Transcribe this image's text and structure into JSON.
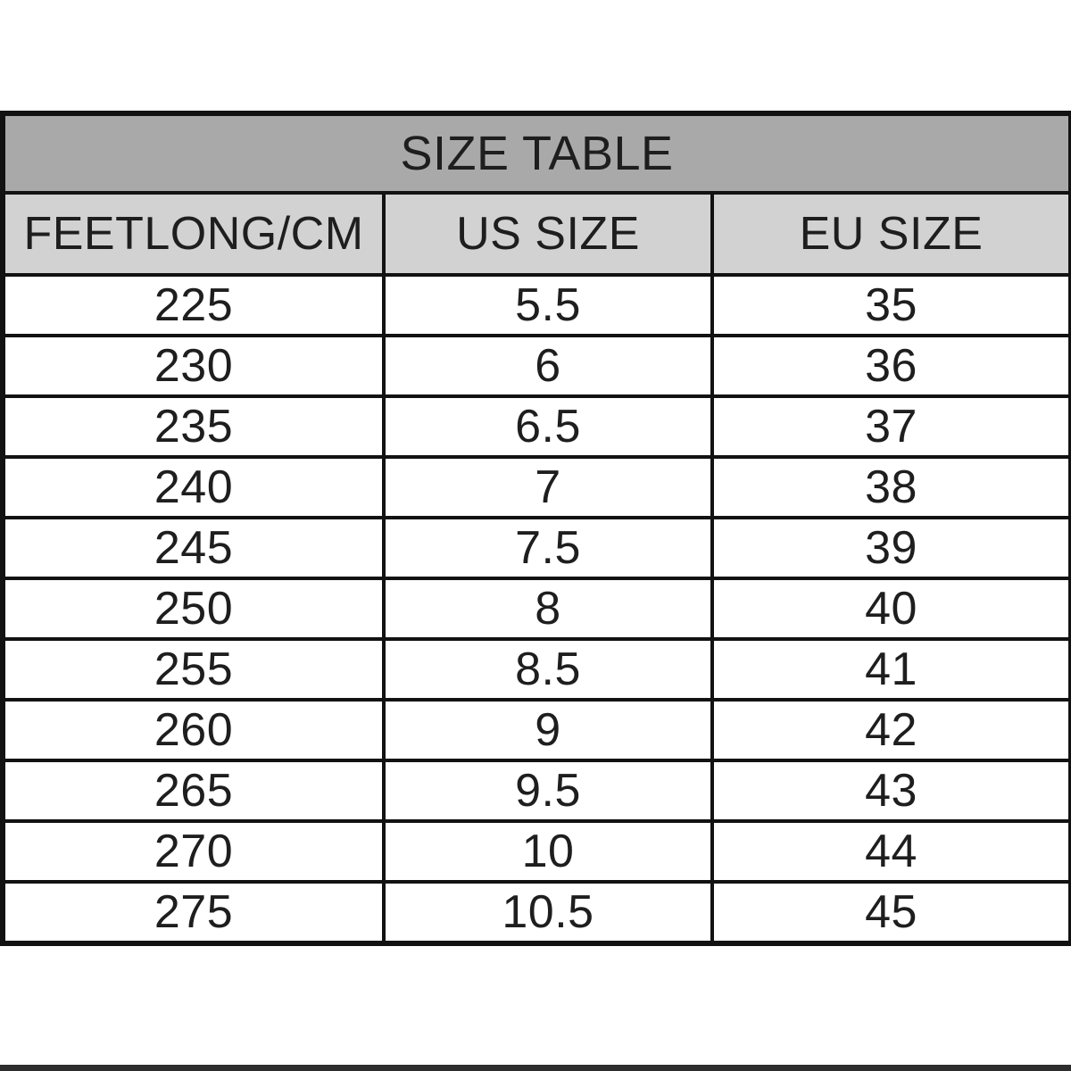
{
  "chart_data": {
    "type": "table",
    "title": "SIZE TABLE",
    "columns": [
      "FEETLONG/CM",
      "US SIZE",
      "EU SIZE"
    ],
    "rows": [
      [
        "225",
        "5.5",
        "35"
      ],
      [
        "230",
        "6",
        "36"
      ],
      [
        "235",
        "6.5",
        "37"
      ],
      [
        "240",
        "7",
        "38"
      ],
      [
        "245",
        "7.5",
        "39"
      ],
      [
        "250",
        "8",
        "40"
      ],
      [
        "255",
        "8.5",
        "41"
      ],
      [
        "260",
        "9",
        "42"
      ],
      [
        "265",
        "9.5",
        "43"
      ],
      [
        "270",
        "10",
        "44"
      ],
      [
        "275",
        "10.5",
        "45"
      ]
    ],
    "layout": {
      "grid": "on",
      "legend": "none"
    }
  },
  "colors": {
    "title_background": "#a9a9a9",
    "header_background": "#d2d2d2",
    "row_background": "#ffffff",
    "border": "#121212",
    "text": "#1e1e1e",
    "bottom_strip": "#2d2d2d",
    "page_background": "#ffffff"
  }
}
